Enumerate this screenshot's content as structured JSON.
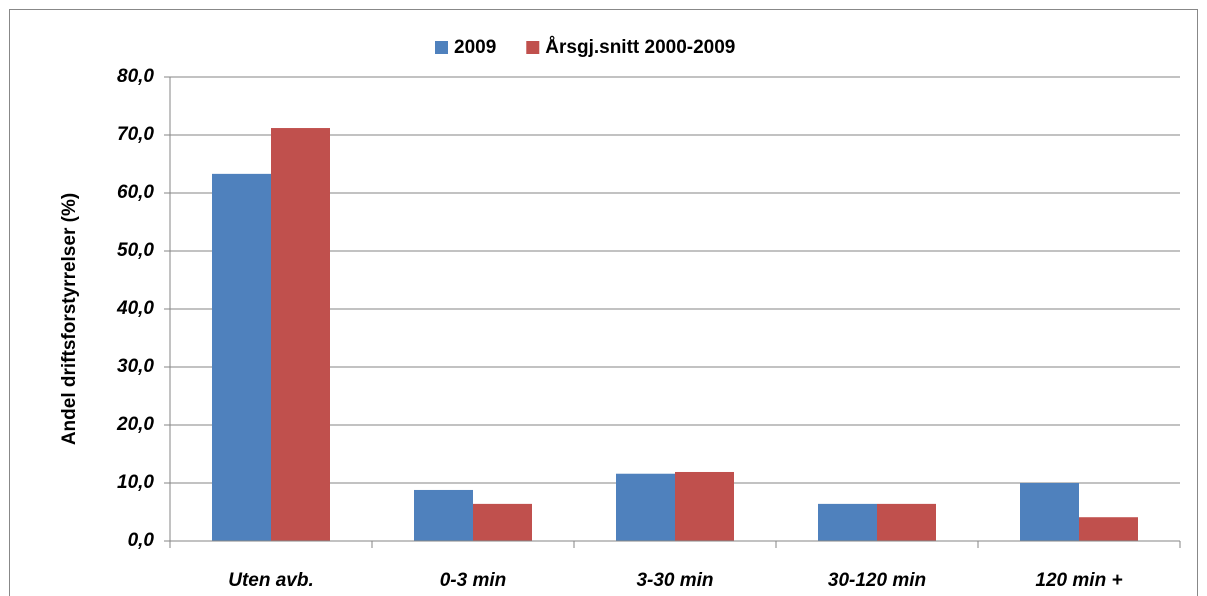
{
  "chart_data": {
    "type": "bar",
    "y_axis_label": "Andel driftsforstyrrelser (%)",
    "categories": [
      "Uten avb.",
      "0-3 min",
      "3-30 min",
      "30-120 min",
      "120 min +"
    ],
    "series": [
      {
        "name": "2009",
        "color": "#4f81bd",
        "values": [
          63.3,
          8.8,
          11.6,
          6.4,
          10.0
        ]
      },
      {
        "name": "Årsgj.snitt 2000-2009",
        "color": "#c0504d",
        "values": [
          71.2,
          6.4,
          11.9,
          6.4,
          4.1
        ]
      }
    ],
    "ylim": [
      0,
      80
    ],
    "yticks": [
      {
        "value": 0,
        "label": "0,0"
      },
      {
        "value": 10,
        "label": "10,0"
      },
      {
        "value": 20,
        "label": "20,0"
      },
      {
        "value": 30,
        "label": "30,0"
      },
      {
        "value": 40,
        "label": "40,0"
      },
      {
        "value": 50,
        "label": "50,0"
      },
      {
        "value": 60,
        "label": "60,0"
      },
      {
        "value": 70,
        "label": "70,0"
      },
      {
        "value": 80,
        "label": "80,0"
      }
    ],
    "grid": true,
    "legend": "top"
  }
}
